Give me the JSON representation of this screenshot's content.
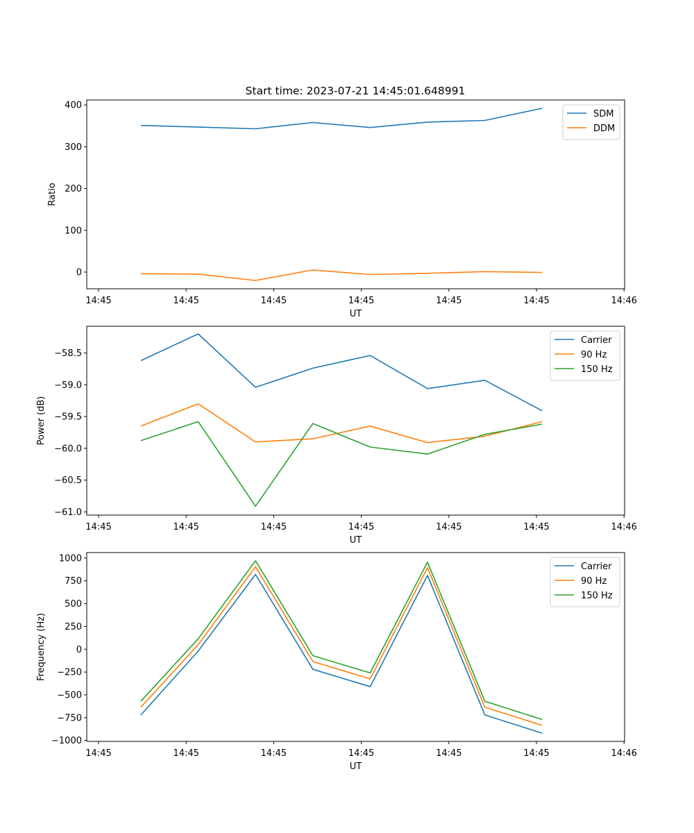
{
  "figure_title": "Start time: 2023-07-21 14:45:01.648991",
  "colors": {
    "blue": "#1f77b4",
    "orange": "#ff7f0e",
    "green": "#2ca02c"
  },
  "chart_data": [
    {
      "type": "line",
      "title": "Start time: 2023-07-21 14:45:01.648991",
      "xlabel": "UT",
      "ylabel": "Ratio",
      "x_tick_labels": [
        "14:45",
        "14:45",
        "14:45",
        "14:45",
        "14:45",
        "14:45",
        "14:46"
      ],
      "y_ticks": [
        0,
        100,
        200,
        300,
        400
      ],
      "y_tick_labels": [
        "0",
        "100",
        "200",
        "300",
        "400"
      ],
      "ylim": [
        -40,
        412
      ],
      "grid": false,
      "legend": "top-right",
      "x": [
        1,
        2,
        3,
        4,
        5,
        6,
        7,
        8
      ],
      "series": [
        {
          "name": "SDM",
          "color": "#1f77b4",
          "values": [
            351,
            347,
            343,
            358,
            346,
            359,
            363,
            392
          ]
        },
        {
          "name": "DDM",
          "color": "#ff7f0e",
          "values": [
            -4,
            -5,
            -20,
            5,
            -6,
            -3,
            1,
            -1
          ]
        }
      ]
    },
    {
      "type": "line",
      "title": "",
      "xlabel": "UT",
      "ylabel": "Power (dB)",
      "x_tick_labels": [
        "14:45",
        "14:45",
        "14:45",
        "14:45",
        "14:45",
        "14:45",
        "14:46"
      ],
      "y_ticks": [
        -58.5,
        -59.0,
        -59.5,
        -60.0,
        -60.5,
        -61.0
      ],
      "y_tick_labels": [
        "−58.5",
        "−59.0",
        "−59.5",
        "−60.0",
        "−60.5",
        "−61.0"
      ],
      "ylim": [
        -61.05,
        -58.08
      ],
      "grid": false,
      "legend": "top-right",
      "x": [
        1,
        2,
        3,
        4,
        5,
        6,
        7,
        8
      ],
      "series": [
        {
          "name": "Carrier",
          "color": "#1f77b4",
          "values": [
            -58.62,
            -58.2,
            -59.04,
            -58.74,
            -58.54,
            -59.06,
            -58.93,
            -59.41
          ]
        },
        {
          "name": "90 Hz",
          "color": "#ff7f0e",
          "values": [
            -59.65,
            -59.3,
            -59.9,
            -59.85,
            -59.65,
            -59.91,
            -59.81,
            -59.58
          ]
        },
        {
          "name": "150 Hz",
          "color": "#2ca02c",
          "values": [
            -59.88,
            -59.58,
            -60.91,
            -59.61,
            -59.98,
            -60.09,
            -59.78,
            -59.62
          ]
        }
      ]
    },
    {
      "type": "line",
      "title": "",
      "xlabel": "UT",
      "ylabel": "Frequency (Hz)",
      "x_tick_labels": [
        "14:45",
        "14:45",
        "14:45",
        "14:45",
        "14:45",
        "14:45",
        "14:46"
      ],
      "y_ticks": [
        1000,
        750,
        500,
        250,
        0,
        -250,
        -500,
        -750,
        -1000
      ],
      "y_tick_labels": [
        "1000",
        "750",
        "500",
        "250",
        "0",
        "−250",
        "−500",
        "−750",
        "−1000"
      ],
      "ylim": [
        -1010,
        1060
      ],
      "grid": false,
      "legend": "top-right",
      "x": [
        1,
        2,
        3,
        4,
        5,
        6,
        7,
        8
      ],
      "series": [
        {
          "name": "Carrier",
          "color": "#1f77b4",
          "values": [
            -720,
            -20,
            820,
            -220,
            -410,
            810,
            -720,
            -920
          ]
        },
        {
          "name": "90 Hz",
          "color": "#ff7f0e",
          "values": [
            -635,
            50,
            905,
            -135,
            -325,
            895,
            -635,
            -835
          ]
        },
        {
          "name": "150 Hz",
          "color": "#2ca02c",
          "values": [
            -570,
            115,
            970,
            -70,
            -260,
            955,
            -570,
            -770
          ]
        }
      ]
    }
  ]
}
